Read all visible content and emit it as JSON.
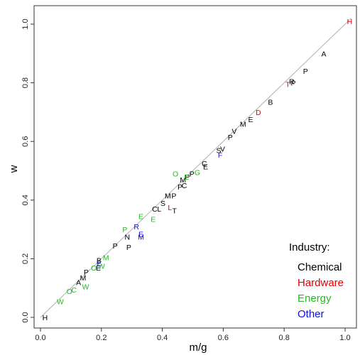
{
  "chart_data": {
    "type": "scatter",
    "title": "",
    "xlabel": "m/g",
    "ylabel": "w",
    "xlim": [
      -0.02,
      1.04
    ],
    "ylim": [
      -0.02,
      1.05
    ],
    "xticks": [
      "0.0",
      "0.2",
      "0.4",
      "0.6",
      "0.8",
      "1.0"
    ],
    "yticks": [
      "0.0",
      "0.2",
      "0.4",
      "0.6",
      "0.8",
      "1.0"
    ],
    "xtick_values": [
      0.0,
      0.2,
      0.4,
      0.6,
      0.8,
      1.0
    ],
    "ytick_values": [
      0.0,
      0.2,
      0.4,
      0.6,
      0.8,
      1.0
    ],
    "reference_line": {
      "x": [
        0.0,
        1.02
      ],
      "y": [
        0.0,
        1.02
      ],
      "color": "#b0b0b0"
    },
    "legend": {
      "title": "Industry:",
      "placement": "bottom-right",
      "entries": [
        {
          "name": "Chemical",
          "color": "#000000"
        },
        {
          "name": "Hardware",
          "color": "#e00000"
        },
        {
          "name": "Energy",
          "color": "#22bb22"
        },
        {
          "name": "Other",
          "color": "#1010e0"
        }
      ]
    },
    "series": [
      {
        "name": "Chemical",
        "color": "#000000",
        "points": [
          {
            "label": "H",
            "x": 0.015,
            "y": 0.0
          },
          {
            "label": "A",
            "x": 0.125,
            "y": 0.12
          },
          {
            "label": "M",
            "x": 0.14,
            "y": 0.135
          },
          {
            "label": "P",
            "x": 0.15,
            "y": 0.155
          },
          {
            "label": "E",
            "x": 0.19,
            "y": 0.17
          },
          {
            "label": "B",
            "x": 0.192,
            "y": 0.195
          },
          {
            "label": "P",
            "x": 0.245,
            "y": 0.245
          },
          {
            "label": "P",
            "x": 0.29,
            "y": 0.24
          },
          {
            "label": "N",
            "x": 0.285,
            "y": 0.275
          },
          {
            "label": "C",
            "x": 0.375,
            "y": 0.37
          },
          {
            "label": "L",
            "x": 0.39,
            "y": 0.37
          },
          {
            "label": "S",
            "x": 0.402,
            "y": 0.39
          },
          {
            "label": "T",
            "x": 0.44,
            "y": 0.365
          },
          {
            "label": "M",
            "x": 0.418,
            "y": 0.415
          },
          {
            "label": "P",
            "x": 0.438,
            "y": 0.415
          },
          {
            "label": "P",
            "x": 0.458,
            "y": 0.445
          },
          {
            "label": "C",
            "x": 0.472,
            "y": 0.45
          },
          {
            "label": "M",
            "x": 0.468,
            "y": 0.47
          },
          {
            "label": "P",
            "x": 0.482,
            "y": 0.48
          },
          {
            "label": "P",
            "x": 0.497,
            "y": 0.49
          },
          {
            "label": "C",
            "x": 0.538,
            "y": 0.525
          },
          {
            "label": "E",
            "x": 0.542,
            "y": 0.515
          },
          {
            "label": "S",
            "x": 0.585,
            "y": 0.57
          },
          {
            "label": "V",
            "x": 0.598,
            "y": 0.575
          },
          {
            "label": "P",
            "x": 0.623,
            "y": 0.615
          },
          {
            "label": "V",
            "x": 0.636,
            "y": 0.635
          },
          {
            "label": "M",
            "x": 0.665,
            "y": 0.66
          },
          {
            "label": "E",
            "x": 0.69,
            "y": 0.675
          },
          {
            "label": "B",
            "x": 0.755,
            "y": 0.735
          },
          {
            "label": "P",
            "x": 0.83,
            "y": 0.8
          },
          {
            "label": "P",
            "x": 0.87,
            "y": 0.84
          },
          {
            "label": "A",
            "x": 0.93,
            "y": 0.9
          },
          {
            "label": "R",
            "x": 0.825,
            "y": 0.805
          }
        ]
      },
      {
        "name": "Hardware",
        "color": "#e00000",
        "points": [
          {
            "label": "L",
            "x": 0.425,
            "y": 0.375
          },
          {
            "label": "D",
            "x": 0.715,
            "y": 0.7
          },
          {
            "label": "T",
            "x": 0.812,
            "y": 0.795
          },
          {
            "label": "H",
            "x": 1.015,
            "y": 1.01
          }
        ]
      },
      {
        "name": "Energy",
        "color": "#22bb22",
        "points": [
          {
            "label": "W",
            "x": 0.065,
            "y": 0.055
          },
          {
            "label": "O",
            "x": 0.095,
            "y": 0.09
          },
          {
            "label": "C",
            "x": 0.11,
            "y": 0.095
          },
          {
            "label": "W",
            "x": 0.148,
            "y": 0.105
          },
          {
            "label": "O",
            "x": 0.175,
            "y": 0.17
          },
          {
            "label": "W",
            "x": 0.2,
            "y": 0.175
          },
          {
            "label": "M",
            "x": 0.215,
            "y": 0.205
          },
          {
            "label": "P",
            "x": 0.277,
            "y": 0.3
          },
          {
            "label": "E",
            "x": 0.37,
            "y": 0.335
          },
          {
            "label": "E",
            "x": 0.33,
            "y": 0.345
          },
          {
            "label": "O",
            "x": 0.443,
            "y": 0.49
          },
          {
            "label": "E",
            "x": 0.48,
            "y": 0.48
          },
          {
            "label": "G",
            "x": 0.515,
            "y": 0.495
          }
        ]
      },
      {
        "name": "Other",
        "color": "#1010e0",
        "points": [
          {
            "label": "E",
            "x": 0.192,
            "y": 0.185
          },
          {
            "label": "R",
            "x": 0.315,
            "y": 0.31
          },
          {
            "label": "E",
            "x": 0.33,
            "y": 0.285
          },
          {
            "label": "M",
            "x": 0.33,
            "y": 0.275
          },
          {
            "label": "F",
            "x": 0.59,
            "y": 0.555
          }
        ]
      }
    ]
  }
}
